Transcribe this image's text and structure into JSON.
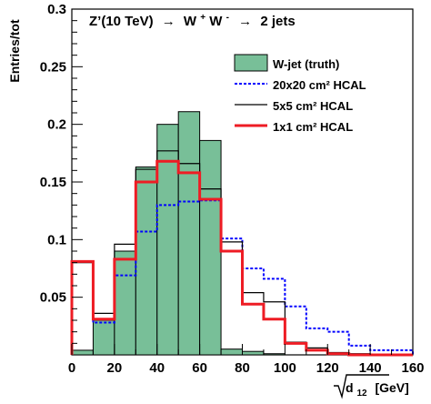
{
  "chart_data": {
    "type": "histogram",
    "title": "Z’(10 TeV) → W⁺W⁻ → 2 jets",
    "title_parts": {
      "prefix": "Z’(10 TeV)",
      "arrow1": "→",
      "w_plus_base": "W",
      "w_plus_sup": "+",
      "w_minus_base": "W",
      "w_minus_sup": "-",
      "arrow2": "→",
      "suffix": "2 jets"
    },
    "ylabel": "Entries/tot",
    "xlabel": "√d12 [GeV]",
    "xlabel_parts": {
      "sqrt": "√",
      "base": "d",
      "sub": "12",
      "unit": "[GeV]"
    },
    "xlim": [
      0,
      160
    ],
    "ylim": [
      0,
      0.3
    ],
    "x_ticks": [
      "0",
      "20",
      "40",
      "60",
      "80",
      "100",
      "120",
      "140",
      "160"
    ],
    "y_ticks": [
      "0.05",
      "0.1",
      "0.15",
      "0.2",
      "0.25",
      "0.3"
    ],
    "bin_edges": [
      0,
      10,
      20,
      30,
      40,
      50,
      60,
      70,
      80,
      90,
      100,
      110,
      120,
      130,
      140,
      150,
      160
    ],
    "series": [
      {
        "name": "W-jet (truth)",
        "style": "filled",
        "color": "#78bf98",
        "edge_color": "#000000",
        "values": [
          0.004,
          0.03,
          0.09,
          0.163,
          0.2,
          0.211,
          0.186,
          0.005,
          0.003,
          0.001,
          0.0,
          0.0,
          0.0,
          0.0,
          0.0,
          0.0
        ]
      },
      {
        "name": "20x20 cm² HCAL",
        "style": "dotted",
        "color": "#0000ff",
        "values": [
          0.081,
          0.028,
          0.069,
          0.107,
          0.13,
          0.133,
          0.134,
          0.101,
          0.075,
          0.066,
          0.042,
          0.023,
          0.02,
          0.008,
          0.004,
          0.004
        ]
      },
      {
        "name": "5x5 cm² HCAL",
        "style": "thin",
        "color": "#000000",
        "values": [
          0.08,
          0.036,
          0.096,
          0.161,
          0.177,
          0.166,
          0.144,
          0.098,
          0.054,
          0.046,
          0.011,
          0.006,
          0.002,
          0.001,
          0.0,
          0.0
        ]
      },
      {
        "name": "1x1 cm² HCAL",
        "style": "thick",
        "color": "#ee1c24",
        "values": [
          0.081,
          0.031,
          0.083,
          0.15,
          0.168,
          0.158,
          0.135,
          0.09,
          0.044,
          0.031,
          0.01,
          0.004,
          0.001,
          0.0,
          0.0,
          0.0
        ]
      }
    ],
    "legend_placement": "upper-right",
    "grid": false
  }
}
